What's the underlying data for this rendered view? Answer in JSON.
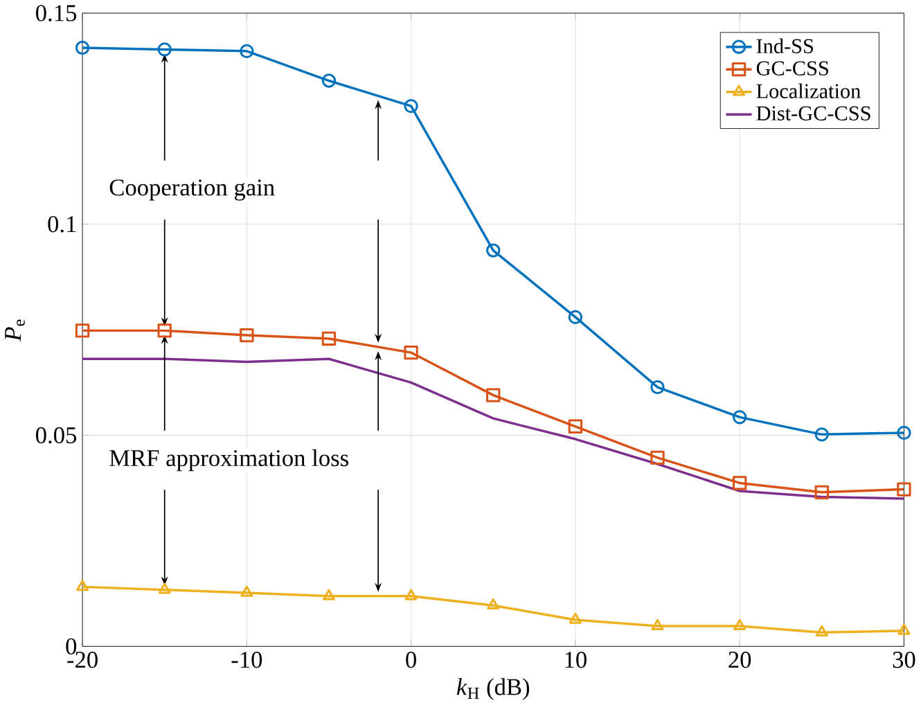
{
  "chart_data": {
    "type": "line",
    "xlabel": "*k*$_{H}$ (dB)",
    "ylabel": "*P*$_{e}$",
    "x": [
      -20,
      -15,
      -10,
      -5,
      0,
      5,
      10,
      15,
      20,
      25,
      30
    ],
    "xlim": [
      -20,
      30
    ],
    "xticks": [
      -20,
      -10,
      0,
      10,
      20,
      30
    ],
    "ylim": [
      0,
      0.15
    ],
    "yticks": [
      0,
      0.05,
      0.1,
      0.15
    ],
    "grid": true,
    "legend": "top right",
    "series": [
      {
        "name": "Ind-SS",
        "color": "#0072bd",
        "marker": "circle",
        "values": [
          0.1418,
          0.1414,
          0.141,
          0.134,
          0.128,
          0.0938,
          0.078,
          0.0614,
          0.0543,
          0.0502,
          0.0506
        ]
      },
      {
        "name": "GC-CSS",
        "color": "#d95319",
        "marker": "square",
        "values": [
          0.0748,
          0.0748,
          0.0737,
          0.0729,
          0.0696,
          0.0595,
          0.0521,
          0.0447,
          0.0387,
          0.0365,
          0.0372
        ]
      },
      {
        "name": "Localization",
        "color": "#edb120",
        "marker": "triangle",
        "values": [
          0.0141,
          0.0134,
          0.0127,
          0.0119,
          0.0119,
          0.0097,
          0.0063,
          0.0048,
          0.0048,
          0.0033,
          0.0037
        ]
      },
      {
        "name": "Dist-GC-CSS",
        "color": "#7e2f8e",
        "marker": "none",
        "values": [
          0.0681,
          0.0681,
          0.0674,
          0.0681,
          0.0625,
          0.054,
          0.0491,
          0.0432,
          0.0368,
          0.0354,
          0.035
        ]
      }
    ],
    "annotations": [
      {
        "text": "Cooperation gain",
        "x": -15,
        "y": 0.1414
      },
      {
        "text": "MRF approximation loss",
        "x": -15,
        "y": 0.0748
      }
    ]
  }
}
